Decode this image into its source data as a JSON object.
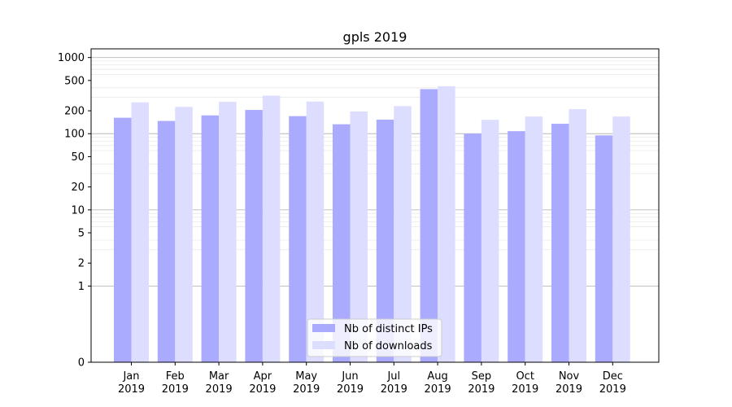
{
  "chart_data": {
    "type": "bar",
    "title": "gpls 2019",
    "xlabel": "",
    "ylabel": "",
    "y_scale": "symlog",
    "ylim": [
      0,
      1300
    ],
    "yticks": [
      0,
      1,
      2,
      5,
      10,
      20,
      50,
      100,
      200,
      500,
      1000
    ],
    "ytick_labels": [
      "0",
      "1",
      "2",
      "5",
      "10",
      "20",
      "50",
      "100",
      "200",
      "500",
      "1000"
    ],
    "categories": [
      {
        "month": "Jan",
        "year": "2019"
      },
      {
        "month": "Feb",
        "year": "2019"
      },
      {
        "month": "Mar",
        "year": "2019"
      },
      {
        "month": "Apr",
        "year": "2019"
      },
      {
        "month": "May",
        "year": "2019"
      },
      {
        "month": "Jun",
        "year": "2019"
      },
      {
        "month": "Jul",
        "year": "2019"
      },
      {
        "month": "Aug",
        "year": "2019"
      },
      {
        "month": "Sep",
        "year": "2019"
      },
      {
        "month": "Oct",
        "year": "2019"
      },
      {
        "month": "Nov",
        "year": "2019"
      },
      {
        "month": "Dec",
        "year": "2019"
      }
    ],
    "series": [
      {
        "name": "Nb of distinct IPs",
        "color": "#aaaaff",
        "values": [
          162,
          147,
          174,
          205,
          170,
          133,
          153,
          385,
          100,
          108,
          135,
          95
        ]
      },
      {
        "name": "Nb of downloads",
        "color": "#ddddff",
        "values": [
          258,
          225,
          262,
          316,
          264,
          196,
          230,
          420,
          152,
          168,
          210,
          168
        ]
      }
    ],
    "grid": true,
    "legend_position": "bottom-center"
  }
}
